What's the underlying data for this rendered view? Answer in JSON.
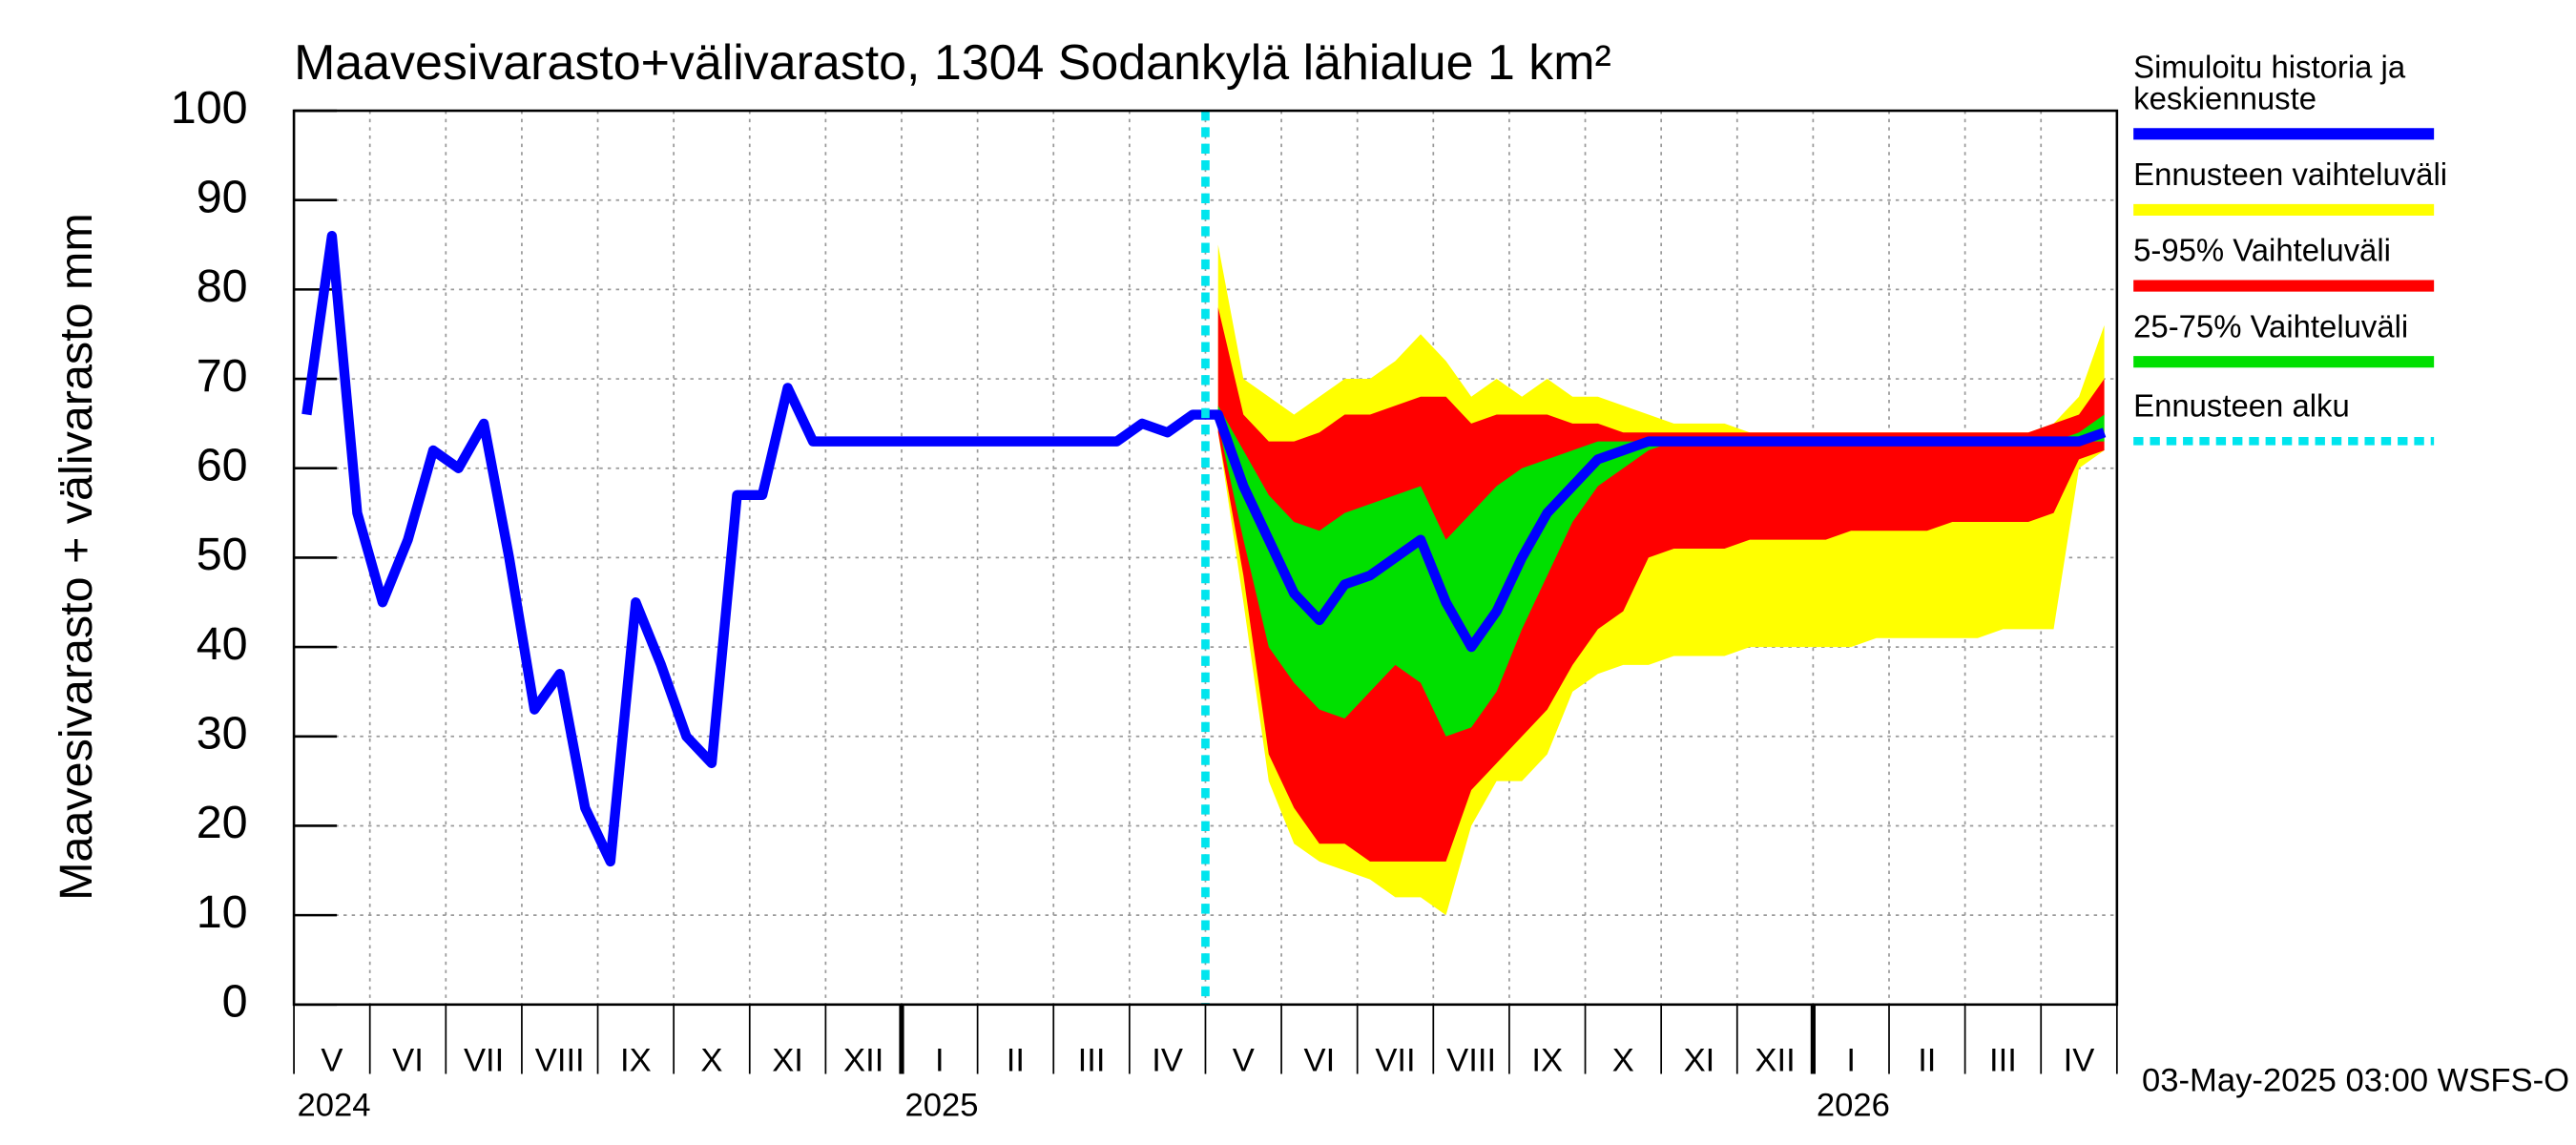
{
  "chart_data": {
    "type": "line",
    "title": "Maavesivarasto+välivarasto,  1304 Sodankylä lähialue 1 km²",
    "y_label": "Maavesivarasto + välivarasto mm",
    "footer": "03-May-2025 03:00 WSFS-O",
    "years": [
      "2024",
      "2025",
      "2026"
    ],
    "categories": [
      null,
      "V",
      null,
      null,
      "VI",
      null,
      null,
      "VII",
      null,
      null,
      "VIII",
      null,
      null,
      "IX",
      null,
      null,
      "X",
      null,
      null,
      "XI",
      null,
      null,
      "XII",
      null,
      null,
      "I",
      null,
      null,
      "II",
      null,
      null,
      "III",
      null,
      null,
      "IV",
      null,
      null,
      "V",
      null,
      null,
      "VI",
      null,
      null,
      "VII",
      null,
      null,
      "VIII",
      null,
      null,
      "IX",
      null,
      null,
      "X",
      null,
      null,
      "XI",
      null,
      null,
      "XII",
      null,
      null,
      "I",
      null,
      null,
      "II",
      null,
      null,
      "III",
      null,
      null,
      "IV",
      null
    ],
    "ylim": [
      0,
      100
    ],
    "yticks": [
      0,
      10,
      20,
      30,
      40,
      50,
      60,
      70,
      80,
      90,
      100
    ],
    "grid": true,
    "bands": [
      {
        "name": "Ennusteen vaihteluväli",
        "color": "#ffff00",
        "low": [
          null,
          null,
          null,
          null,
          null,
          null,
          null,
          null,
          null,
          null,
          null,
          null,
          null,
          null,
          null,
          null,
          null,
          null,
          null,
          null,
          null,
          null,
          null,
          null,
          null,
          null,
          null,
          null,
          null,
          null,
          null,
          null,
          null,
          null,
          null,
          null,
          64,
          45,
          25,
          18,
          16,
          15,
          14,
          12,
          12,
          10,
          20,
          25,
          25,
          28,
          35,
          37,
          38,
          38,
          39,
          39,
          39,
          40,
          40,
          40,
          40,
          40,
          41,
          41,
          41,
          41,
          41,
          42,
          42,
          42,
          60,
          62
        ],
        "high": [
          null,
          null,
          null,
          null,
          null,
          null,
          null,
          null,
          null,
          null,
          null,
          null,
          null,
          null,
          null,
          null,
          null,
          null,
          null,
          null,
          null,
          null,
          null,
          null,
          null,
          null,
          null,
          null,
          null,
          null,
          null,
          null,
          null,
          null,
          null,
          null,
          85,
          70,
          68,
          66,
          68,
          70,
          70,
          72,
          75,
          72,
          68,
          70,
          68,
          70,
          68,
          68,
          67,
          66,
          65,
          65,
          65,
          64,
          64,
          64,
          64,
          64,
          64,
          64,
          64,
          64,
          64,
          64,
          64,
          65,
          68,
          76
        ]
      },
      {
        "name": "5-95% Vaihteluväli",
        "color": "#ff0000",
        "low": [
          null,
          null,
          null,
          null,
          null,
          null,
          null,
          null,
          null,
          null,
          null,
          null,
          null,
          null,
          null,
          null,
          null,
          null,
          null,
          null,
          null,
          null,
          null,
          null,
          null,
          null,
          null,
          null,
          null,
          null,
          null,
          null,
          null,
          null,
          null,
          null,
          64,
          48,
          28,
          22,
          18,
          18,
          16,
          16,
          16,
          16,
          24,
          27,
          30,
          33,
          38,
          42,
          44,
          50,
          51,
          51,
          51,
          52,
          52,
          52,
          52,
          53,
          53,
          53,
          53,
          54,
          54,
          54,
          54,
          55,
          61,
          62
        ],
        "high": [
          null,
          null,
          null,
          null,
          null,
          null,
          null,
          null,
          null,
          null,
          null,
          null,
          null,
          null,
          null,
          null,
          null,
          null,
          null,
          null,
          null,
          null,
          null,
          null,
          null,
          null,
          null,
          null,
          null,
          null,
          null,
          null,
          null,
          null,
          null,
          null,
          78,
          66,
          63,
          63,
          64,
          66,
          66,
          67,
          68,
          68,
          65,
          66,
          66,
          66,
          65,
          65,
          64,
          64,
          64,
          64,
          64,
          64,
          64,
          64,
          64,
          64,
          64,
          64,
          64,
          64,
          64,
          64,
          64,
          65,
          66,
          70
        ]
      },
      {
        "name": "25-75% Vaihteluväli",
        "color": "#00e000",
        "low": [
          null,
          null,
          null,
          null,
          null,
          null,
          null,
          null,
          null,
          null,
          null,
          null,
          null,
          null,
          null,
          null,
          null,
          null,
          null,
          null,
          null,
          null,
          null,
          null,
          null,
          null,
          null,
          null,
          null,
          null,
          null,
          null,
          null,
          null,
          null,
          null,
          65,
          52,
          40,
          36,
          33,
          32,
          35,
          38,
          36,
          30,
          31,
          35,
          42,
          48,
          54,
          58,
          60,
          62,
          63,
          63,
          63,
          63,
          63,
          63,
          63,
          63,
          63,
          63,
          63,
          63,
          63,
          63,
          63,
          63,
          63,
          63
        ],
        "high": [
          null,
          null,
          null,
          null,
          null,
          null,
          null,
          null,
          null,
          null,
          null,
          null,
          null,
          null,
          null,
          null,
          null,
          null,
          null,
          null,
          null,
          null,
          null,
          null,
          null,
          null,
          null,
          null,
          null,
          null,
          null,
          null,
          null,
          null,
          null,
          null,
          67,
          62,
          57,
          54,
          53,
          55,
          56,
          57,
          58,
          52,
          55,
          58,
          60,
          61,
          62,
          63,
          63,
          63,
          63,
          63,
          63,
          63,
          63,
          63,
          63,
          63,
          63,
          63,
          63,
          63,
          63,
          63,
          63,
          63,
          64,
          66
        ]
      }
    ],
    "series": [
      {
        "name": "Simuloitu historia ja keskiennuste",
        "color": "#0000ff",
        "values": [
          66,
          86,
          55,
          45,
          52,
          62,
          60,
          65,
          50,
          33,
          37,
          22,
          16,
          45,
          38,
          30,
          27,
          57,
          57,
          69,
          63,
          63,
          63,
          63,
          63,
          63,
          63,
          63,
          63,
          63,
          63,
          63,
          63,
          65,
          64,
          66,
          66,
          58,
          52,
          46,
          43,
          47,
          48,
          50,
          52,
          45,
          40,
          44,
          50,
          55,
          58,
          61,
          62,
          63,
          63,
          63,
          63,
          63,
          63,
          63,
          63,
          63,
          63,
          63,
          63,
          63,
          63,
          63,
          63,
          63,
          63,
          64
        ]
      }
    ],
    "forecast_start": {
      "name": "Ennusteen alku",
      "color": "#00e5ee"
    }
  }
}
